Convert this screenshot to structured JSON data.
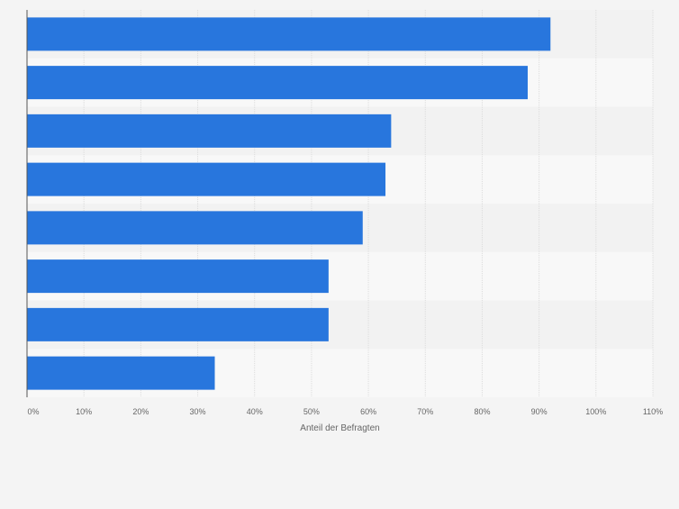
{
  "chart_data": {
    "type": "bar",
    "orientation": "horizontal",
    "categories": [
      "",
      "",
      "",
      "",
      "",
      "",
      "",
      ""
    ],
    "values": [
      92,
      88,
      64,
      63,
      59,
      53,
      53,
      33
    ],
    "xlabel": "Anteil der Befragten",
    "ylabel": "",
    "xlim": [
      0,
      110
    ],
    "ticks": [
      0,
      10,
      20,
      30,
      40,
      50,
      60,
      70,
      80,
      90,
      100,
      110
    ],
    "tick_labels": [
      "0%",
      "10%",
      "20%",
      "30%",
      "40%",
      "50%",
      "60%",
      "70%",
      "80%",
      "90%",
      "100%",
      "110%"
    ],
    "grid": true,
    "legend": "none",
    "colors": {
      "bar": "#2876dd",
      "band_light": "#f8f8f8",
      "band_dark": "#f2f2f2",
      "grid": "#dcdcdc",
      "axis": "#555555",
      "tick_text": "#666666"
    }
  }
}
